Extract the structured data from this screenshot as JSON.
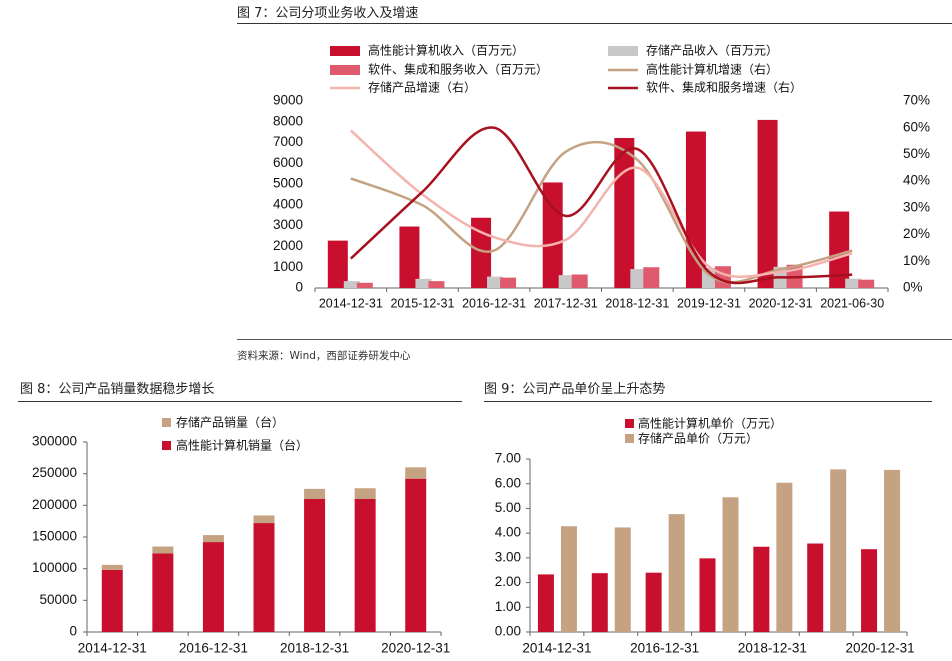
{
  "colors": {
    "red": "#C8102E",
    "gray": "#C8C8C8",
    "pink": "#E05A6E",
    "tan": "#C4A282",
    "lightpink": "#F4B3AE",
    "darkred": "#A80F1F"
  },
  "figure7": {
    "title": "图 7：公司分项业务收入及增速",
    "source": "资料来源：Wind，西部证券研发中心"
  },
  "figure8": {
    "title": "图 8：公司产品销量数据稳步增长"
  },
  "figure9": {
    "title": "图 9：公司产品单价呈上升态势"
  },
  "chart_data": [
    {
      "id": "fig7",
      "type": "bar",
      "title": "图 7：公司分项业务收入及增速",
      "categories": [
        "2014-12-31",
        "2015-12-31",
        "2016-12-31",
        "2017-12-31",
        "2018-12-31",
        "2019-12-31",
        "2020-12-31",
        "2021-06-30"
      ],
      "ylim": [
        0,
        9000
      ],
      "yticks": [
        "0",
        "1000",
        "2000",
        "3000",
        "4000",
        "5000",
        "6000",
        "7000",
        "8000",
        "9000"
      ],
      "y2lim": [
        0,
        70
      ],
      "y2ticks": [
        "0%",
        "10%",
        "20%",
        "30%",
        "40%",
        "50%",
        "60%",
        "70%"
      ],
      "series": [
        {
          "name": "高性能计算机收入（百万元）",
          "kind": "bar",
          "color": "#C8102E",
          "values": [
            2280,
            2960,
            3380,
            5080,
            7220,
            7530,
            8090,
            3680
          ]
        },
        {
          "name": "存储产品收入（百万元）",
          "kind": "bar",
          "color": "#C8C8C8",
          "values": [
            330,
            440,
            550,
            620,
            910,
            960,
            1020,
            450
          ]
        },
        {
          "name": "软件、集成和服务收入（百万元）",
          "kind": "bar",
          "color": "#E05A6E",
          "values": [
            250,
            330,
            500,
            650,
            1000,
            1050,
            1120,
            400
          ]
        },
        {
          "name": "高性能计算机增速（右）",
          "kind": "line",
          "axis": "right",
          "color": "#C4A282",
          "values": [
            41,
            31,
            14,
            51,
            48,
            5,
            7,
            14
          ]
        },
        {
          "name": "存储产品增速（右）",
          "kind": "line",
          "axis": "right",
          "color": "#F4B3AE",
          "values": [
            59,
            35,
            19,
            18,
            45,
            8,
            6,
            13
          ]
        },
        {
          "name": "软件、集成和服务增速（右）",
          "kind": "line",
          "axis": "right",
          "color": "#A80F1F",
          "values": [
            11,
            36,
            60,
            27,
            52,
            6,
            4,
            5
          ]
        }
      ],
      "legend": [
        {
          "label": "高性能计算机收入（百万元）",
          "style": "box",
          "color": "#C8102E"
        },
        {
          "label": "存储产品收入（百万元）",
          "style": "box",
          "color": "#C8C8C8"
        },
        {
          "label": "软件、集成和服务收入（百万元）",
          "style": "box",
          "color": "#E05A6E"
        },
        {
          "label": "高性能计算机增速（右）",
          "style": "line",
          "color": "#C4A282"
        },
        {
          "label": "存储产品增速（右）",
          "style": "line",
          "color": "#F4B3AE"
        },
        {
          "label": "软件、集成和服务增速（右）",
          "style": "line",
          "color": "#A80F1F"
        }
      ]
    },
    {
      "id": "fig8",
      "type": "bar",
      "stacked": true,
      "title": "图 8：公司产品销量数据稳步增长",
      "categories": [
        "2014-12-31",
        "2015-12-31",
        "2016-12-31",
        "2017-12-31",
        "2018-12-31",
        "2019-12-31",
        "2020-12-31"
      ],
      "xtick_labels": [
        "2014-12-31",
        "",
        "2016-12-31",
        "",
        "2018-12-31",
        "",
        "2020-12-31"
      ],
      "ylim": [
        0,
        300000
      ],
      "yticks": [
        "0",
        "50000",
        "100000",
        "150000",
        "200000",
        "250000",
        "300000"
      ],
      "series": [
        {
          "name": "高性能计算机销量（台）",
          "color": "#C8102E",
          "values": [
            98000,
            124000,
            142000,
            172000,
            210000,
            210000,
            242000
          ]
        },
        {
          "name": "存储产品销量（台）",
          "color": "#C4A282",
          "values": [
            8000,
            11000,
            11000,
            12000,
            16000,
            17000,
            18000
          ]
        }
      ],
      "legend": [
        {
          "label": "存储产品销量（台）",
          "color": "#C4A282"
        },
        {
          "label": "高性能计算机销量（台）",
          "color": "#C8102E"
        }
      ]
    },
    {
      "id": "fig9",
      "type": "bar",
      "title": "图 9：公司产品单价呈上升态势",
      "categories": [
        "2014-12-31",
        "2015-12-31",
        "2016-12-31",
        "2017-12-31",
        "2018-12-31",
        "2019-12-31",
        "2020-12-31"
      ],
      "xtick_labels": [
        "2014-12-31",
        "",
        "2016-12-31",
        "",
        "2018-12-31",
        "",
        "2020-12-31"
      ],
      "ylim": [
        0,
        7
      ],
      "yticks": [
        "0.00",
        "1.00",
        "2.00",
        "3.00",
        "4.00",
        "5.00",
        "6.00",
        "7.00"
      ],
      "series": [
        {
          "name": "高性能计算机单价（万元）",
          "color": "#C8102E",
          "values": [
            2.33,
            2.38,
            2.4,
            2.98,
            3.45,
            3.58,
            3.35
          ]
        },
        {
          "name": "存储产品单价（万元）",
          "color": "#C4A282",
          "values": [
            4.28,
            4.23,
            4.77,
            5.45,
            6.04,
            6.58,
            6.56
          ]
        }
      ],
      "legend": [
        {
          "label": "高性能计算机单价（万元）",
          "color": "#C8102E"
        },
        {
          "label": "存储产品单价（万元）",
          "color": "#C4A282"
        }
      ]
    }
  ]
}
